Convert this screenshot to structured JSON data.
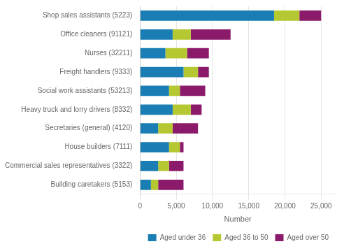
{
  "chart_data": {
    "type": "bar",
    "orientation": "horizontal",
    "stacked": true,
    "categories": [
      "Shop sales assistants (5223)",
      "Office cleaners (91121)",
      "Nurses (32211)",
      "Freight handlers (9333)",
      "Social work assistants (53213)",
      "Heavy truck and lorry drivers (8332)",
      "Secretaries (general) (4120)",
      "House builders (7111)",
      "Commercial sales representatives (3322)",
      "Building caretakers (5153)"
    ],
    "series": [
      {
        "name": "Aged under 36",
        "color": "#1a7eb5",
        "values": [
          18500,
          4500,
          3500,
          6000,
          4000,
          4500,
          2500,
          4000,
          2500,
          1500
        ]
      },
      {
        "name": "Aged 36 to 50",
        "color": "#b5c832",
        "values": [
          3500,
          2500,
          3000,
          2000,
          1500,
          2500,
          2000,
          1500,
          1500,
          1000
        ]
      },
      {
        "name": "Aged over 50",
        "color": "#8b1a6b",
        "values": [
          3000,
          5500,
          3000,
          1500,
          3500,
          1500,
          3500,
          500,
          2000,
          3500
        ]
      }
    ],
    "xlabel": "Number",
    "xlim": [
      0,
      27000
    ],
    "xticks": [
      0,
      {
        "value": 5000,
        "label": "5,000"
      },
      {
        "value": 10000,
        "label": "10,000"
      },
      {
        "value": 15000,
        "label": "15,000"
      },
      {
        "value": 20000,
        "label": "20,000"
      },
      {
        "value": 25000,
        "label": "25,000"
      }
    ],
    "grid": true,
    "legend": "lower right"
  }
}
